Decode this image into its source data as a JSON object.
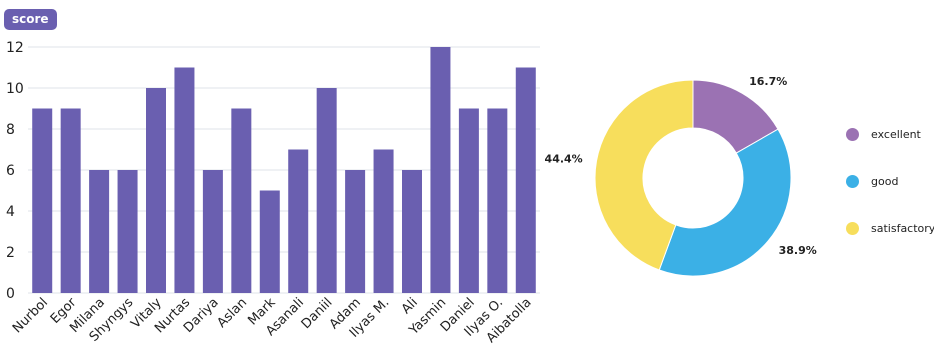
{
  "chart_data": [
    {
      "type": "bar",
      "ylabel": "score",
      "ylim": [
        0,
        12
      ],
      "yticks": [
        0,
        2,
        4,
        6,
        8,
        10,
        12
      ],
      "grid": true,
      "bar_color": "#6a5fb0",
      "categories": [
        "Nurbol",
        "Egor",
        "Milana",
        "Shyngys",
        "Vitaly",
        "Nurtas",
        "Dariya",
        "Aslan",
        "Mark",
        "Asanali",
        "Daniil",
        "Adam",
        "Ilyas M.",
        "Ali",
        "Yasmin",
        "Daniel",
        "Ilyas O.",
        "Aibatolla"
      ],
      "values": [
        9,
        9,
        6,
        6,
        10,
        11,
        6,
        9,
        5,
        7,
        10,
        6,
        7,
        6,
        12,
        9,
        9,
        11
      ]
    },
    {
      "type": "pie",
      "donut": true,
      "legend_position": "right",
      "slices": [
        {
          "label": "excellent",
          "value": 16.7,
          "display": "16.7%",
          "color": "#9b72b3"
        },
        {
          "label": "good",
          "value": 38.9,
          "display": "38.9%",
          "color": "#3bb0e6"
        },
        {
          "label": "satisfactory",
          "value": 44.4,
          "display": "44.4%",
          "color": "#f7de5c"
        }
      ]
    }
  ]
}
